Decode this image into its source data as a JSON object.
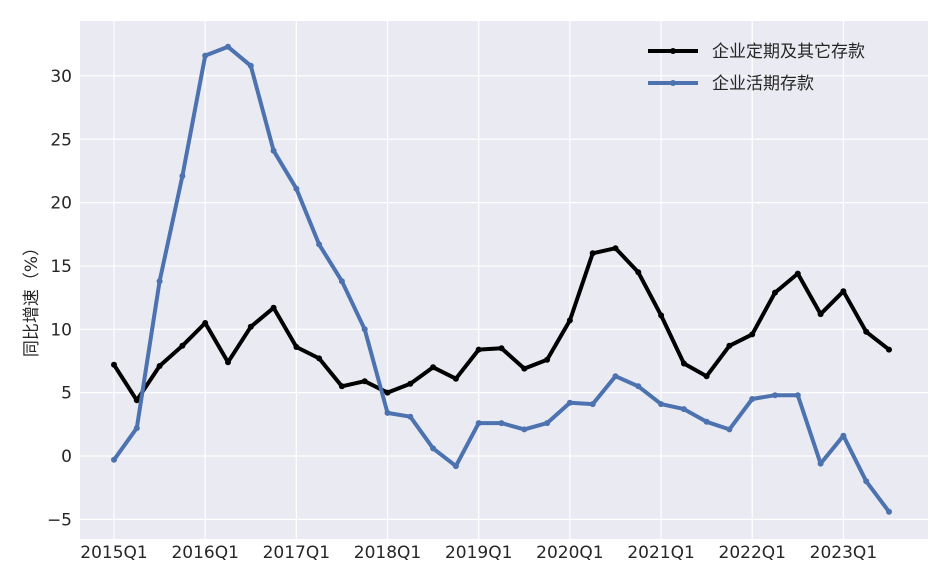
{
  "chart_data": {
    "type": "line",
    "title": "",
    "xlabel": "",
    "ylabel": "同比增速（%）",
    "ylim": [
      -6,
      33.5
    ],
    "yticks": [
      -5,
      0,
      5,
      10,
      15,
      20,
      25,
      30
    ],
    "ytick_labels": [
      "−5",
      "0",
      "5",
      "10",
      "15",
      "20",
      "25",
      "30"
    ],
    "grid": true,
    "legend_position": "top-right",
    "x": [
      "2015Q1",
      "2015Q2",
      "2015Q3",
      "2015Q4",
      "2016Q1",
      "2016Q2",
      "2016Q3",
      "2016Q4",
      "2017Q1",
      "2017Q2",
      "2017Q3",
      "2017Q4",
      "2018Q1",
      "2018Q2",
      "2018Q3",
      "2018Q4",
      "2019Q1",
      "2019Q2",
      "2019Q3",
      "2019Q4",
      "2020Q1",
      "2020Q2",
      "2020Q3",
      "2020Q4",
      "2021Q1",
      "2021Q2",
      "2021Q3",
      "2021Q4",
      "2022Q1",
      "2022Q2",
      "2022Q3",
      "2022Q4",
      "2023Q1",
      "2023Q2",
      "2023Q3"
    ],
    "xtick_labels": [
      "2015Q1",
      "2016Q1",
      "2017Q1",
      "2018Q1",
      "2019Q1",
      "2020Q1",
      "2021Q1",
      "2022Q1",
      "2023Q1"
    ],
    "series": [
      {
        "name": "企业定期及其它存款",
        "color": "#000000",
        "values": [
          7.2,
          4.4,
          7.1,
          8.7,
          10.5,
          7.4,
          10.2,
          11.7,
          8.6,
          7.7,
          5.5,
          5.9,
          5.0,
          5.7,
          7.0,
          6.1,
          8.4,
          8.5,
          6.9,
          7.6,
          10.7,
          16.0,
          16.4,
          14.5,
          11.1,
          7.3,
          6.3,
          8.7,
          9.6,
          12.9,
          14.4,
          11.2,
          13.0,
          9.8,
          8.4
        ]
      },
      {
        "name": "企业活期存款",
        "color": "#4c72b0",
        "values": [
          -0.3,
          2.2,
          13.8,
          22.1,
          31.6,
          32.3,
          30.8,
          24.1,
          21.1,
          16.7,
          13.8,
          10.0,
          3.4,
          3.1,
          0.6,
          -0.8,
          2.6,
          2.6,
          2.1,
          2.6,
          4.2,
          4.1,
          6.3,
          5.5,
          4.1,
          3.7,
          2.7,
          2.1,
          4.5,
          4.8,
          4.8,
          -0.6,
          1.6,
          -2.0,
          -4.4
        ]
      }
    ]
  }
}
